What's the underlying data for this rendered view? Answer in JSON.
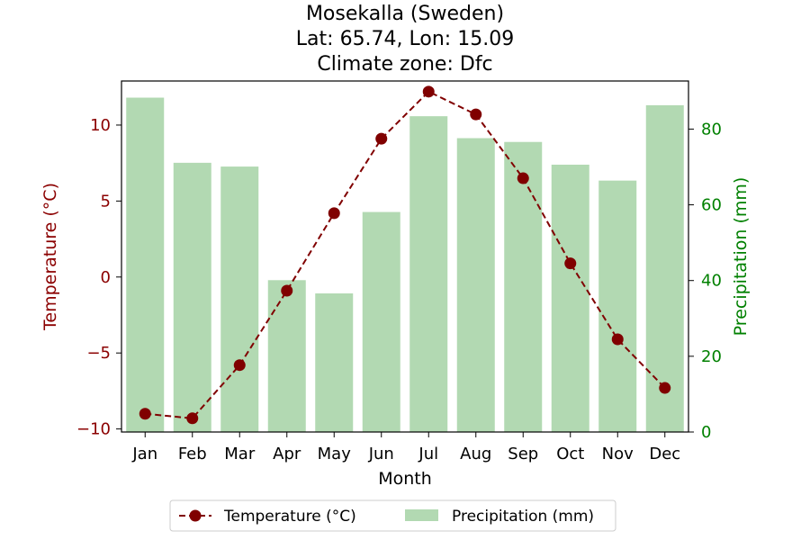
{
  "chart_data": {
    "type": "bar+line",
    "title_lines": [
      "Mosekalla (Sweden)",
      "Lat: 65.74, Lon: 15.09",
      "Climate zone: Dfc"
    ],
    "xlabel": "Month",
    "ylabel_left": "Temperature (°C)",
    "ylabel_right": "Precipitation (mm)",
    "categories": [
      "Jan",
      "Feb",
      "Mar",
      "Apr",
      "May",
      "Jun",
      "Jul",
      "Aug",
      "Sep",
      "Oct",
      "Nov",
      "Dec"
    ],
    "ylim_left": [
      -10.2,
      12.9
    ],
    "ylim_right": [
      0,
      92.7
    ],
    "yticks_left": [
      -10,
      -5,
      0,
      5,
      10
    ],
    "yticks_left_labels": [
      "−10",
      "−5",
      "0",
      "5",
      "10"
    ],
    "yticks_right": [
      0,
      20,
      40,
      60,
      80
    ],
    "yticks_right_labels": [
      "0",
      "20",
      "40",
      "60",
      "80"
    ],
    "series": [
      {
        "name": "Temperature (°C)",
        "kind": "line",
        "axis": "left",
        "color": "#800000",
        "line_style": "dashed",
        "marker": "circle",
        "values": [
          -9.0,
          -9.3,
          -5.8,
          -0.9,
          4.2,
          9.1,
          12.2,
          10.7,
          6.5,
          0.9,
          -4.1,
          -7.3
        ]
      },
      {
        "name": "Precipitation (mm)",
        "kind": "bar",
        "axis": "right",
        "color": "#b2d9b2",
        "values": [
          88.3,
          71.1,
          70.1,
          40.1,
          36.6,
          58.1,
          83.4,
          77.6,
          76.6,
          70.6,
          66.4,
          86.3
        ]
      }
    ],
    "legend": {
      "placement": "bottom-center",
      "columns": 2
    },
    "colors": {
      "left_axis": "#8b0000",
      "right_axis": "#008000",
      "line": "#800000",
      "bar": "#b2d9b2"
    },
    "grid": false
  }
}
